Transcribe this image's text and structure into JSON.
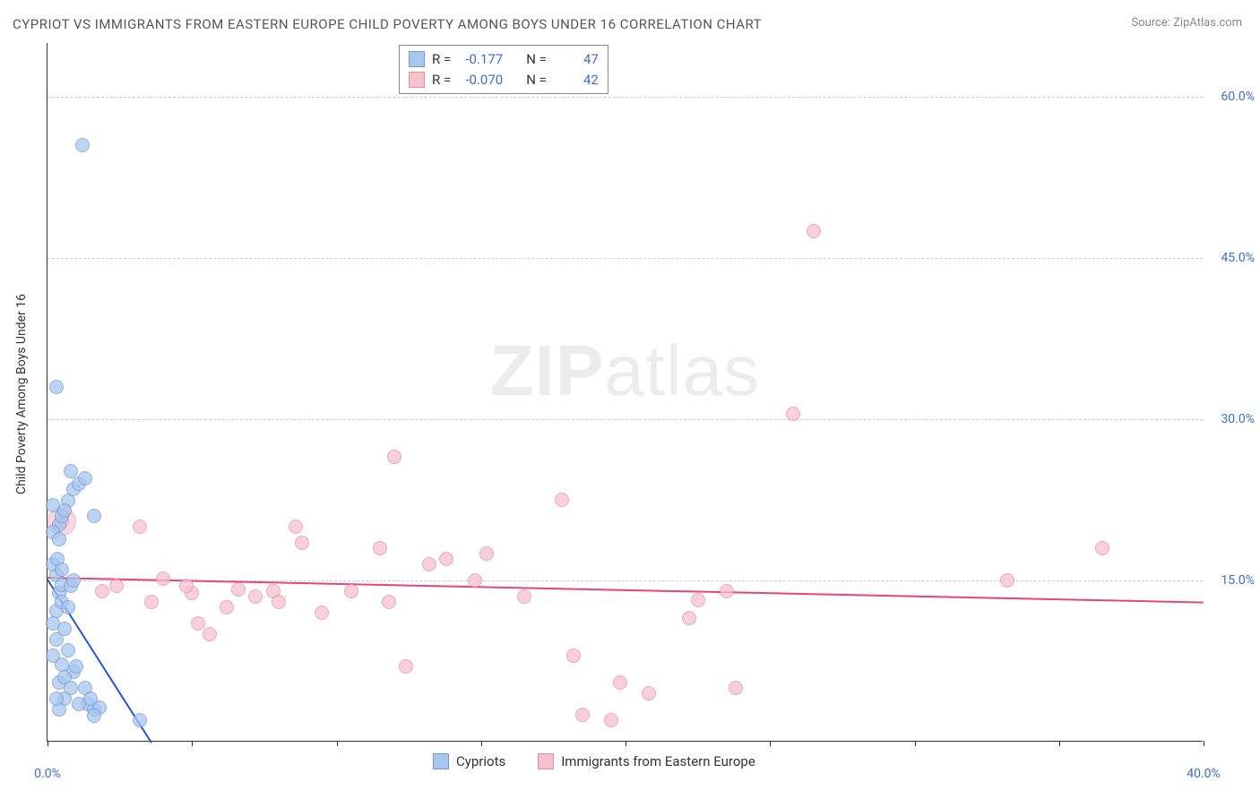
{
  "title": "CYPRIOT VS IMMIGRANTS FROM EASTERN EUROPE CHILD POVERTY AMONG BOYS UNDER 16 CORRELATION CHART",
  "source_label": "Source:",
  "source_value": "ZipAtlas.com",
  "y_axis_title": "Child Poverty Among Boys Under 16",
  "watermark": {
    "part1": "ZIP",
    "part2": "atlas"
  },
  "chart": {
    "type": "scatter",
    "background_color": "#ffffff",
    "grid_color": "#cccccc",
    "axis_color": "#333333",
    "tick_label_color": "#3b6fc9",
    "xlim": [
      0,
      40
    ],
    "ylim": [
      0,
      65
    ],
    "x_ticks": [
      0,
      5,
      10,
      15,
      20,
      25,
      30,
      35,
      40
    ],
    "x_tick_labels": {
      "0": "0.0%",
      "40": "40.0%"
    },
    "y_gridlines": [
      15,
      30,
      45,
      60
    ],
    "y_tick_labels": {
      "15": "15.0%",
      "30": "30.0%",
      "45": "45.0%",
      "60": "60.0%"
    },
    "point_radius": 8,
    "point_border_width": 1.5,
    "point_fill_opacity": 0.35
  },
  "series": {
    "cypriots": {
      "label": "Cypriots",
      "color_fill": "#a9c6ec",
      "color_border": "#6b9bd8",
      "line_color": "#2456c7",
      "R": "-0.177",
      "N": "47",
      "points": [
        [
          0.3,
          15.5
        ],
        [
          0.4,
          13.8
        ],
        [
          0.5,
          14.6
        ],
        [
          0.2,
          11.0
        ],
        [
          0.3,
          9.5
        ],
        [
          0.7,
          8.5
        ],
        [
          0.5,
          7.2
        ],
        [
          0.9,
          6.5
        ],
        [
          0.4,
          5.5
        ],
        [
          0.6,
          4.0
        ],
        [
          1.4,
          3.5
        ],
        [
          1.6,
          3.0
        ],
        [
          1.8,
          3.2
        ],
        [
          1.3,
          5.0
        ],
        [
          1.0,
          7.0
        ],
        [
          0.2,
          16.5
        ],
        [
          0.35,
          17.0
        ],
        [
          0.4,
          20.2
        ],
        [
          0.5,
          21.0
        ],
        [
          0.7,
          22.4
        ],
        [
          0.9,
          23.5
        ],
        [
          1.1,
          24.0
        ],
        [
          1.3,
          24.5
        ],
        [
          0.8,
          25.2
        ],
        [
          1.6,
          21.0
        ],
        [
          0.3,
          33.0
        ],
        [
          1.2,
          55.5
        ],
        [
          3.2,
          2.0
        ],
        [
          0.3,
          12.2
        ],
        [
          0.6,
          10.5
        ],
        [
          0.8,
          14.5
        ],
        [
          0.5,
          16.0
        ],
        [
          0.9,
          15.0
        ],
        [
          0.5,
          13.0
        ],
        [
          0.7,
          12.5
        ],
        [
          0.2,
          8.0
        ],
        [
          1.6,
          2.4
        ],
        [
          0.4,
          3.0
        ],
        [
          0.6,
          6.0
        ],
        [
          0.2,
          19.5
        ],
        [
          0.4,
          18.8
        ],
        [
          0.3,
          4.0
        ],
        [
          0.8,
          5.0
        ],
        [
          1.5,
          4.0
        ],
        [
          1.1,
          3.5
        ],
        [
          0.2,
          22.0
        ],
        [
          0.6,
          21.5
        ]
      ],
      "regression": {
        "x1": 0,
        "y1": 15.2,
        "x2": 3.6,
        "y2": 0
      }
    },
    "immigrants": {
      "label": "Immigrants from Eastern Europe",
      "color_fill": "#f5c1cf",
      "color_border": "#e88ba5",
      "line_color": "#e5457a",
      "R": "-0.070",
      "N": "42",
      "points": [
        [
          0.5,
          20.5
        ],
        [
          3.2,
          20.0
        ],
        [
          1.9,
          14.0
        ],
        [
          4.0,
          15.2
        ],
        [
          3.6,
          13.0
        ],
        [
          5.2,
          11.0
        ],
        [
          5.6,
          10.0
        ],
        [
          5.0,
          13.8
        ],
        [
          6.2,
          12.5
        ],
        [
          7.8,
          14.0
        ],
        [
          8.6,
          20.0
        ],
        [
          8.8,
          18.5
        ],
        [
          9.5,
          12.0
        ],
        [
          12.0,
          26.5
        ],
        [
          11.5,
          18.0
        ],
        [
          11.8,
          13.0
        ],
        [
          12.4,
          7.0
        ],
        [
          13.8,
          17.0
        ],
        [
          14.8,
          15.0
        ],
        [
          15.2,
          17.5
        ],
        [
          16.5,
          13.5
        ],
        [
          17.8,
          22.5
        ],
        [
          18.5,
          2.5
        ],
        [
          19.5,
          2.0
        ],
        [
          18.2,
          8.0
        ],
        [
          19.8,
          5.5
        ],
        [
          20.8,
          4.5
        ],
        [
          22.2,
          11.5
        ],
        [
          23.8,
          5.0
        ],
        [
          22.5,
          13.2
        ],
        [
          23.5,
          14.0
        ],
        [
          25.8,
          30.5
        ],
        [
          26.5,
          47.5
        ],
        [
          33.2,
          15.0
        ],
        [
          36.5,
          18.0
        ],
        [
          2.4,
          14.5
        ],
        [
          4.8,
          14.5
        ],
        [
          6.6,
          14.2
        ],
        [
          8.0,
          13.0
        ],
        [
          10.5,
          14.0
        ],
        [
          13.2,
          16.5
        ],
        [
          7.2,
          13.5
        ]
      ],
      "large_point": {
        "x": 0.5,
        "y": 20.5,
        "radius": 16
      },
      "regression": {
        "x1": 0,
        "y1": 15.3,
        "x2": 40,
        "y2": 13.0
      }
    }
  },
  "stats_labels": {
    "R": "R =",
    "N": "N ="
  }
}
